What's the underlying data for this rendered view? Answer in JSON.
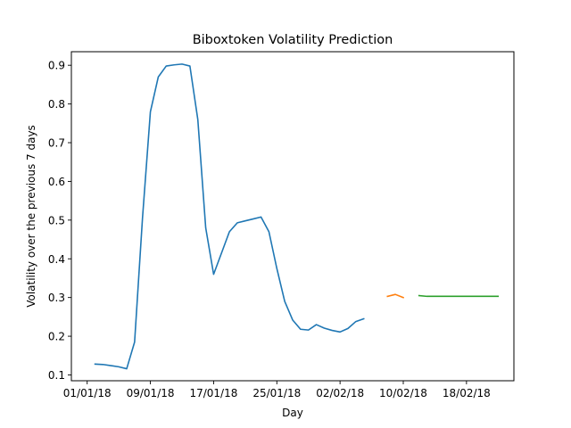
{
  "chart_data": {
    "type": "line",
    "title": "Biboxtoken Volatility Prediction",
    "xlabel": "Day",
    "ylabel": "Volatility over the previous 7 days",
    "x_axis_type": "date",
    "xlim": [
      "2017-12-30",
      "2018-02-24"
    ],
    "ylim": [
      0.085,
      0.935
    ],
    "grid": false,
    "x_ticks": [
      {
        "date": "2018-01-01",
        "label": "01/01/18"
      },
      {
        "date": "2018-01-09",
        "label": "09/01/18"
      },
      {
        "date": "2018-01-17",
        "label": "17/01/18"
      },
      {
        "date": "2018-01-25",
        "label": "25/01/18"
      },
      {
        "date": "2018-02-02",
        "label": "02/02/18"
      },
      {
        "date": "2018-02-10",
        "label": "10/02/18"
      },
      {
        "date": "2018-02-18",
        "label": "18/02/18"
      }
    ],
    "y_ticks": [
      {
        "value": 0.1,
        "label": "0.1"
      },
      {
        "value": 0.2,
        "label": "0.2"
      },
      {
        "value": 0.3,
        "label": "0.3"
      },
      {
        "value": 0.4,
        "label": "0.4"
      },
      {
        "value": 0.5,
        "label": "0.5"
      },
      {
        "value": 0.6,
        "label": "0.6"
      },
      {
        "value": 0.7,
        "label": "0.7"
      },
      {
        "value": 0.8,
        "label": "0.8"
      },
      {
        "value": 0.9,
        "label": "0.9"
      }
    ],
    "series": [
      {
        "color": "#1f77b4",
        "x": [
          "2018-01-02",
          "2018-01-03",
          "2018-01-04",
          "2018-01-05",
          "2018-01-06",
          "2018-01-07",
          "2018-01-08",
          "2018-01-09",
          "2018-01-10",
          "2018-01-11",
          "2018-01-12",
          "2018-01-13",
          "2018-01-14",
          "2018-01-15",
          "2018-01-16",
          "2018-01-17",
          "2018-01-18",
          "2018-01-19",
          "2018-01-20",
          "2018-01-21",
          "2018-01-22",
          "2018-01-23",
          "2018-01-24",
          "2018-01-25",
          "2018-01-26",
          "2018-01-27",
          "2018-01-28",
          "2018-01-29",
          "2018-01-30",
          "2018-01-31",
          "2018-02-01",
          "2018-02-02",
          "2018-02-03",
          "2018-02-04",
          "2018-02-05"
        ],
        "y": [
          0.128,
          0.127,
          0.124,
          0.121,
          0.116,
          0.185,
          0.505,
          0.78,
          0.87,
          0.898,
          0.901,
          0.903,
          0.898,
          0.76,
          0.48,
          0.36,
          0.415,
          0.47,
          0.493,
          0.498,
          0.503,
          0.508,
          0.47,
          0.375,
          0.29,
          0.242,
          0.218,
          0.216,
          0.23,
          0.221,
          0.215,
          0.211,
          0.22,
          0.238,
          0.245
        ]
      },
      {
        "color": "#ff7f0e",
        "x": [
          "2018-02-08",
          "2018-02-09",
          "2018-02-10"
        ],
        "y": [
          0.303,
          0.308,
          0.3
        ]
      },
      {
        "color": "#2ca02c",
        "x": [
          "2018-02-12",
          "2018-02-13",
          "2018-02-14",
          "2018-02-15",
          "2018-02-16",
          "2018-02-17",
          "2018-02-18",
          "2018-02-19",
          "2018-02-20",
          "2018-02-21",
          "2018-02-22"
        ],
        "y": [
          0.305,
          0.303,
          0.303,
          0.303,
          0.303,
          0.303,
          0.303,
          0.303,
          0.303,
          0.303,
          0.303
        ]
      }
    ]
  }
}
